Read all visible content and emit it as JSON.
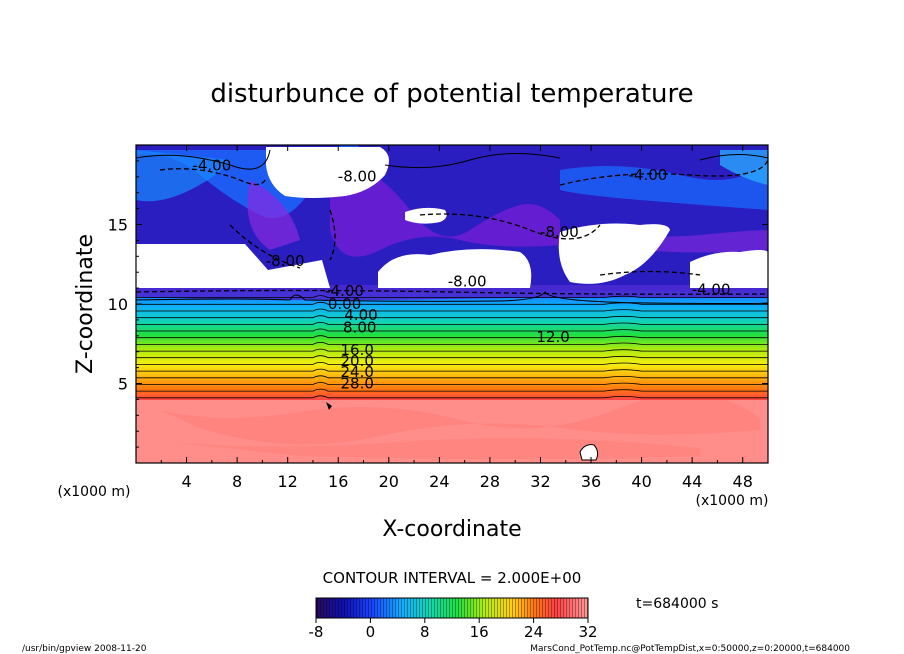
{
  "chart_data": {
    "type": "heatmap",
    "title": "disturbunce of potential temperature",
    "xlabel": "X-coordinate",
    "ylabel": "Z-coordinate",
    "x_unit_left": "(x1000 m)",
    "x_unit_right": "(x1000 m)",
    "xlim": [
      0,
      50
    ],
    "ylim": [
      0,
      20
    ],
    "x_ticks": [
      4,
      8,
      12,
      16,
      20,
      24,
      28,
      32,
      36,
      40,
      44,
      48
    ],
    "y_ticks": [
      5,
      10,
      15
    ],
    "contour_interval_text": "CONTOUR INTERVAL = 2.000E+00",
    "contour_interval": 2.0,
    "contour_labels": [
      {
        "text": "-4.00",
        "x": 6,
        "z": 18.4
      },
      {
        "text": "-8.00",
        "x": 17.5,
        "z": 17.7
      },
      {
        "text": "-4.00",
        "x": 40.5,
        "z": 17.8
      },
      {
        "text": "-8.00",
        "x": 33.5,
        "z": 14.2
      },
      {
        "text": "-8.00",
        "x": 11.8,
        "z": 12.4
      },
      {
        "text": "-8.00",
        "x": 26.2,
        "z": 11.1
      },
      {
        "text": "-4.00",
        "x": 45.5,
        "z": 10.6
      },
      {
        "text": "-4.00",
        "x": 16.5,
        "z": 10.5
      },
      {
        "text": "0.00",
        "x": 16.5,
        "z": 9.7
      },
      {
        "text": "4.00",
        "x": 17.8,
        "z": 9.0
      },
      {
        "text": "8.00",
        "x": 17.7,
        "z": 8.2
      },
      {
        "text": "12.0",
        "x": 33.0,
        "z": 7.6
      },
      {
        "text": "16.0",
        "x": 17.5,
        "z": 6.8
      },
      {
        "text": "20.0",
        "x": 17.5,
        "z": 6.1
      },
      {
        "text": "24.0",
        "x": 17.5,
        "z": 5.4
      },
      {
        "text": "28.0",
        "x": 17.5,
        "z": 4.7
      }
    ],
    "colorbar": {
      "min": -8,
      "max": 32,
      "ticks": [
        -8,
        0,
        8,
        16,
        24,
        32
      ]
    },
    "time_text": "t=684000 s"
  },
  "footer": {
    "left": "/usr/bin/gpview  2008-11-20",
    "right": "MarsCond_PotTemp.nc@PotTempDist,x=0:50000,z=0:20000,t=684000"
  }
}
